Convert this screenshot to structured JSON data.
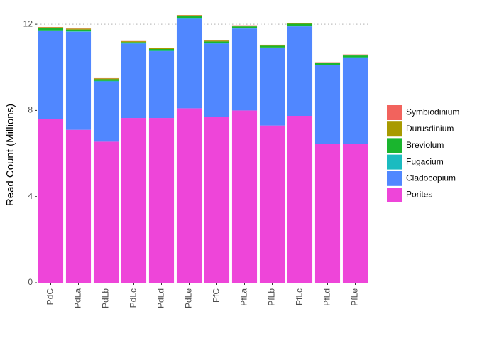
{
  "chart_data": {
    "type": "bar",
    "stacked": true,
    "title": "",
    "xlabel": "",
    "ylabel": "Read Count (Millions)",
    "ylim": [
      0,
      12.4
    ],
    "yticks": [
      0,
      4,
      8,
      12
    ],
    "grid": false,
    "reference_line": {
      "y": 12,
      "style": "dotted",
      "color": "#bfbfbf"
    },
    "legend_position": "right",
    "categories": [
      "PdC",
      "PdLa",
      "PdLb",
      "PdLc",
      "PdLd",
      "PdLe",
      "PfC",
      "PfLa",
      "PfLb",
      "PfLc",
      "PfLd",
      "PfLe"
    ],
    "series": [
      {
        "name": "Porites",
        "color": "#EE45D9",
        "values": [
          7.6,
          7.1,
          6.55,
          7.65,
          7.65,
          8.1,
          7.7,
          8.0,
          7.3,
          7.75,
          6.45,
          6.45
        ]
      },
      {
        "name": "Cladocopium",
        "color": "#5087FF",
        "values": [
          4.1,
          4.55,
          2.8,
          3.45,
          3.1,
          4.15,
          3.4,
          3.8,
          3.6,
          4.15,
          3.65,
          4.0
        ]
      },
      {
        "name": "Fugacium",
        "color": "#1BBBC0",
        "values": [
          0.02,
          0.02,
          0.02,
          0.02,
          0.02,
          0.02,
          0.02,
          0.02,
          0.02,
          0.02,
          0.02,
          0.02
        ]
      },
      {
        "name": "Breviolum",
        "color": "#1AB52E",
        "values": [
          0.1,
          0.08,
          0.08,
          0.05,
          0.08,
          0.1,
          0.08,
          0.08,
          0.08,
          0.1,
          0.07,
          0.08
        ]
      },
      {
        "name": "Durusdinium",
        "color": "#A89A00",
        "values": [
          0.04,
          0.04,
          0.04,
          0.04,
          0.04,
          0.05,
          0.04,
          0.04,
          0.04,
          0.04,
          0.04,
          0.04
        ]
      },
      {
        "name": "Symbiodinium",
        "color": "#F2635D",
        "values": [
          0.01,
          0.01,
          0.01,
          0.01,
          0.01,
          0.01,
          0.01,
          0.01,
          0.01,
          0.01,
          0.01,
          0.01
        ]
      }
    ],
    "legend_order": [
      "Symbiodinium",
      "Durusdinium",
      "Breviolum",
      "Fugacium",
      "Cladocopium",
      "Porites"
    ]
  }
}
